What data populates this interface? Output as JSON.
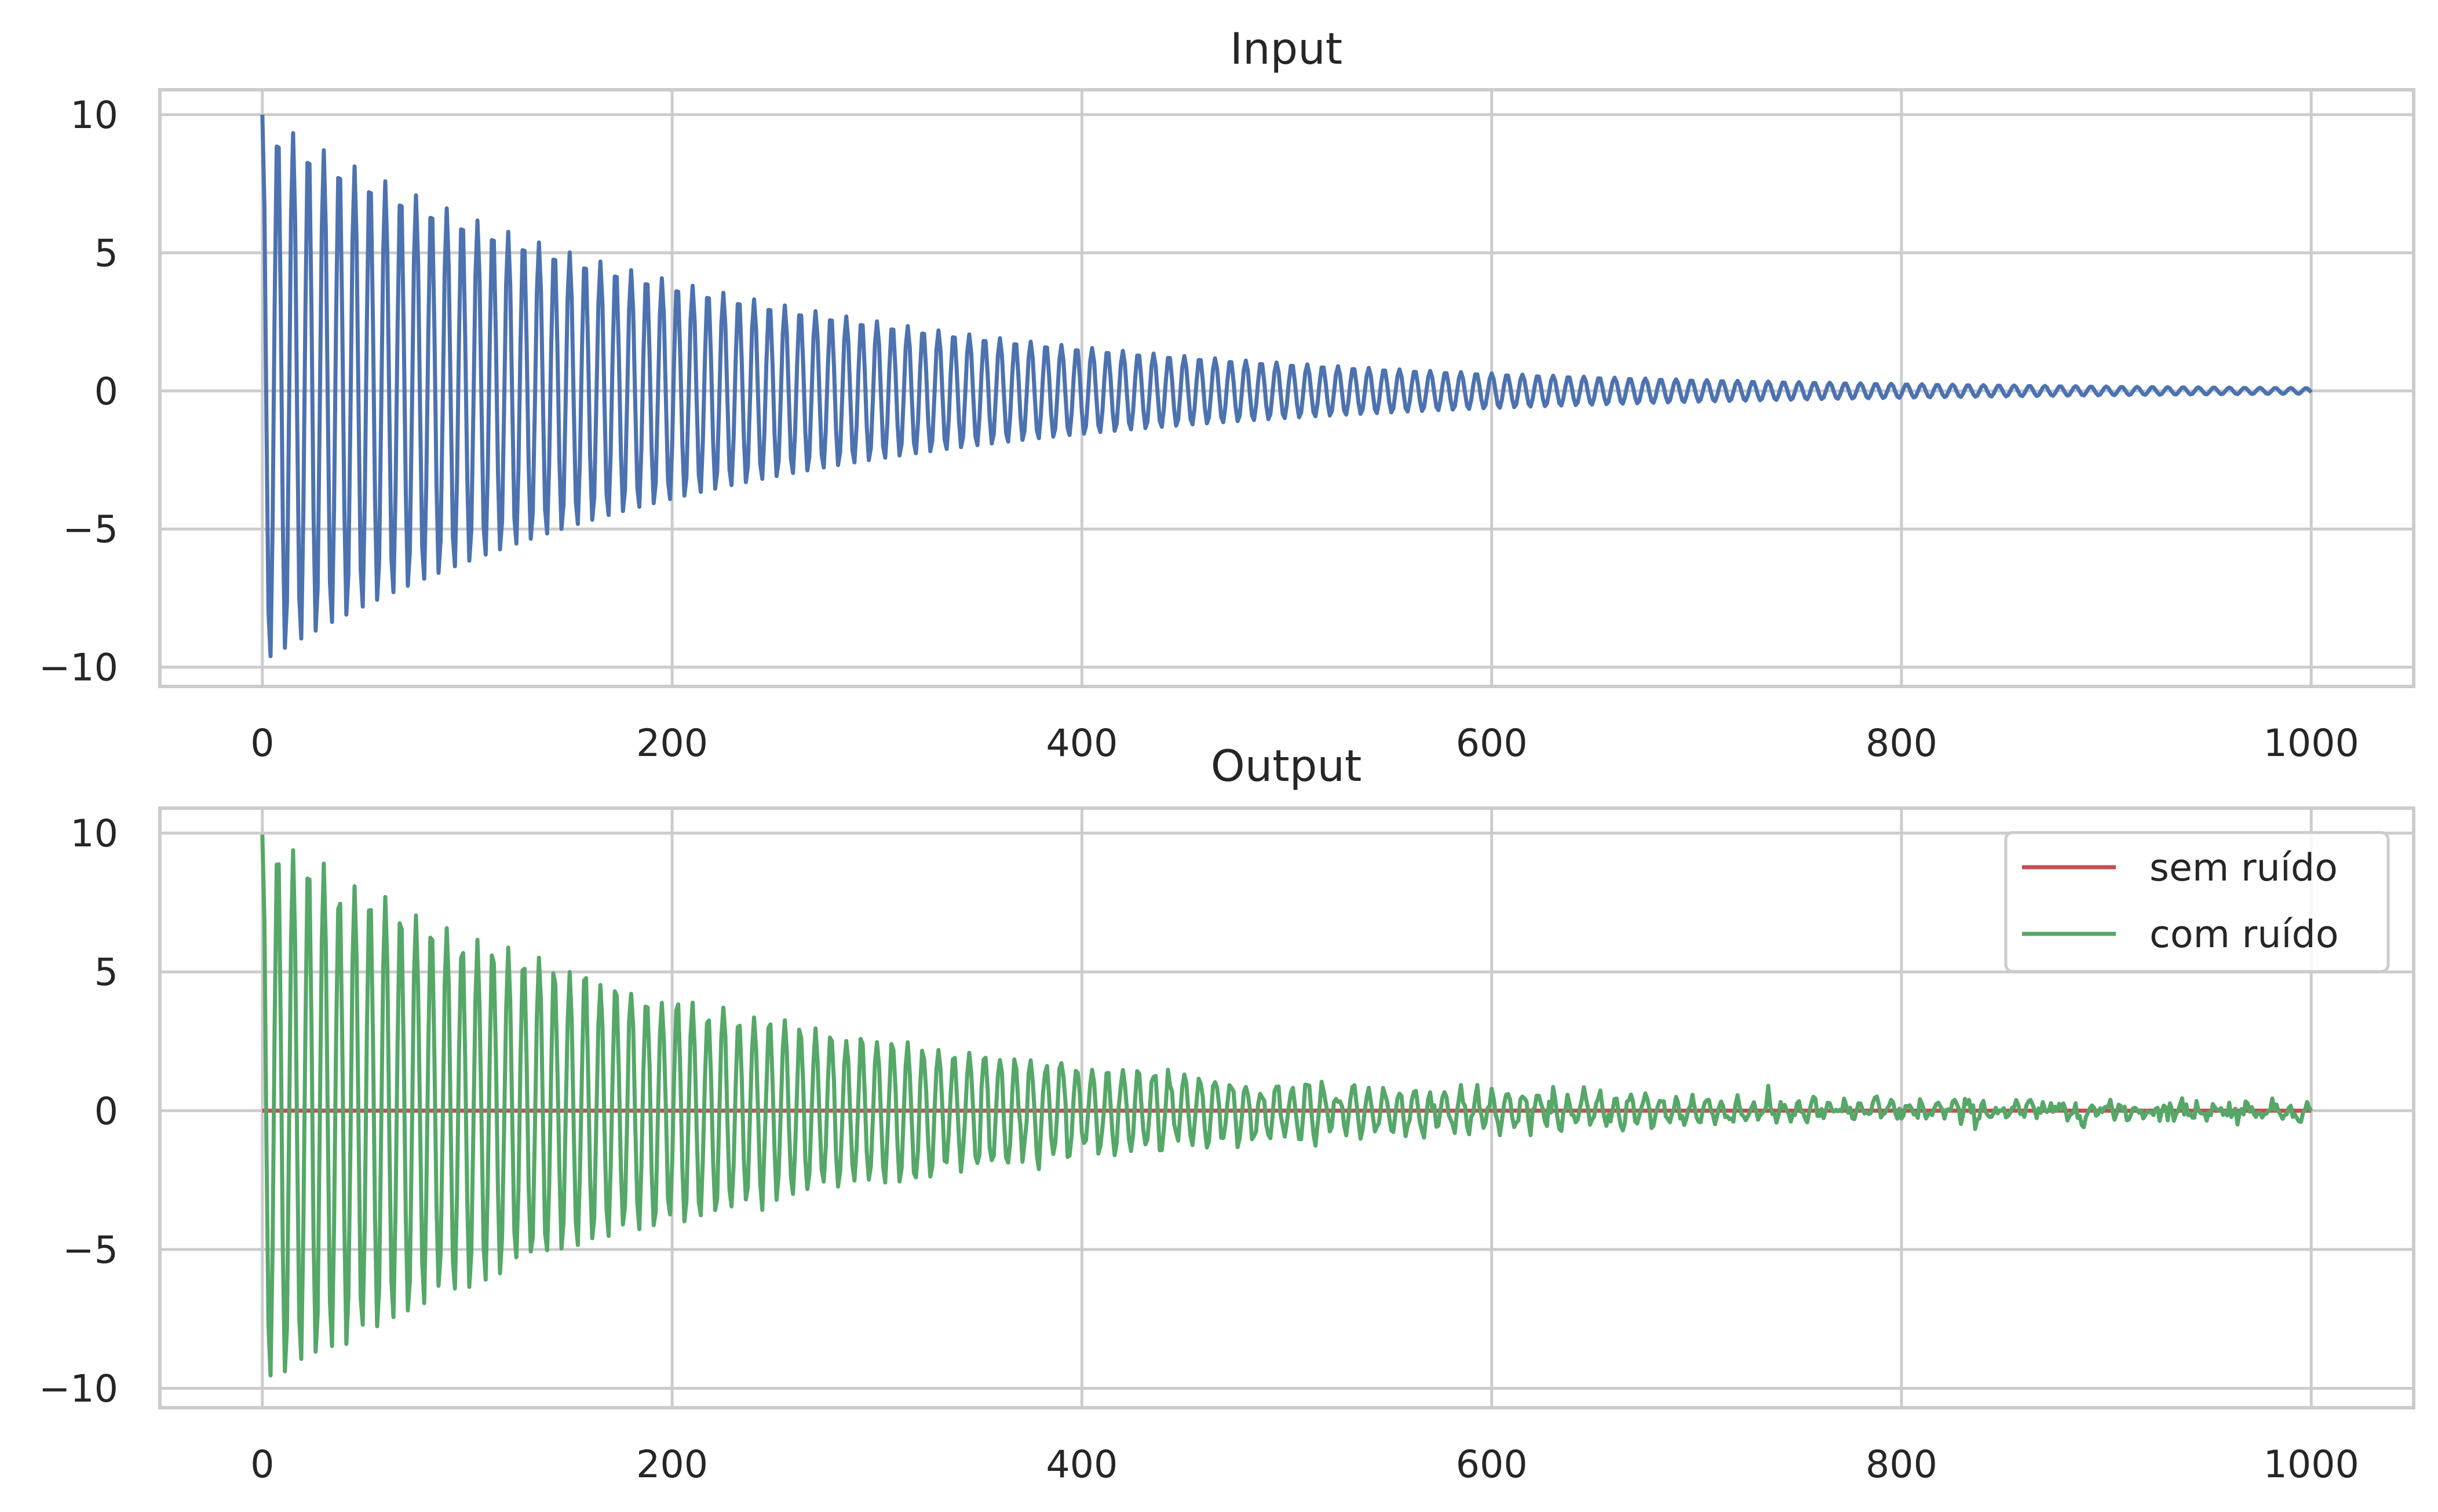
{
  "figure": {
    "background": "#ffffff",
    "grid_color": "#cccccc"
  },
  "chart_data": [
    {
      "type": "line",
      "title": "Input",
      "xlabel": "",
      "ylabel": "",
      "xlim": [
        -50,
        1050
      ],
      "ylim": [
        -10.7,
        10.9
      ],
      "grid": true,
      "xticks": [
        0,
        200,
        400,
        600,
        800,
        1000
      ],
      "xtick_labels": [
        "0",
        "200",
        "400",
        "600",
        "800",
        "1000"
      ],
      "yticks": [
        10,
        5,
        0,
        -5,
        -10
      ],
      "ytick_labels": [
        "10",
        "5",
        "0",
        "−5",
        "−10"
      ],
      "signal": {
        "x_start": 0,
        "x_end": 1000,
        "step": 1,
        "amplitude0": 10,
        "decay_rate": 0.0046,
        "period": 7.5
      },
      "series": [
        {
          "color": "#4c72b0",
          "kind": "decaying_oscillation"
        }
      ]
    },
    {
      "type": "line",
      "title": "Output",
      "xlabel": "",
      "ylabel": "",
      "xlim": [
        -50,
        1050
      ],
      "ylim": [
        -10.7,
        10.9
      ],
      "grid": true,
      "xticks": [
        0,
        200,
        400,
        600,
        800,
        1000
      ],
      "xtick_labels": [
        "0",
        "200",
        "400",
        "600",
        "800",
        "1000"
      ],
      "yticks": [
        10,
        5,
        0,
        -5,
        -10
      ],
      "ytick_labels": [
        "10",
        "5",
        "0",
        "−5",
        "−10"
      ],
      "legend_position": "top-right",
      "signal": {
        "x_start": 0,
        "x_end": 1000,
        "step": 1,
        "amplitude0": 10,
        "decay_rate": 0.0046,
        "period": 7.5,
        "noise_std": 0.17
      },
      "series": [
        {
          "name": "sem ruído",
          "color": "#c44e52",
          "kind": "flat_zero"
        },
        {
          "name": "com ruído",
          "color": "#55a868",
          "kind": "noisy_decaying_oscillation"
        }
      ]
    }
  ]
}
